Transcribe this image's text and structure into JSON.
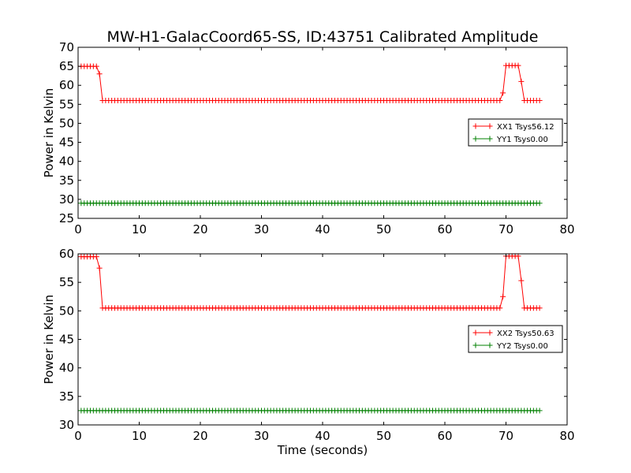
{
  "chart_data": [
    {
      "type": "line",
      "title": "MW-H1-GalacCoord65-SS, ID:43751 Calibrated Amplitude",
      "xlabel": "",
      "ylabel": "Power in Kelvin",
      "xlim": [
        0,
        80
      ],
      "ylim": [
        25,
        70
      ],
      "xticks": [
        "0",
        "10",
        "20",
        "30",
        "40",
        "50",
        "60",
        "70",
        "80"
      ],
      "yticks": [
        "25",
        "30",
        "35",
        "40",
        "45",
        "50",
        "55",
        "60",
        "65",
        "70"
      ],
      "grid": false,
      "legend_position": "center-right",
      "series": [
        {
          "name": "XX1 Tsys56.12",
          "color": "#ff0000",
          "marker": "plus",
          "segments": [
            {
              "x_start": 0.5,
              "x_end": 3.0,
              "y": 65.0
            },
            {
              "x": 3.5,
              "y": 63.0
            },
            {
              "x_start": 4.0,
              "x_end": 69.0,
              "y": 56.0
            },
            {
              "x": 69.5,
              "y": 58.0
            },
            {
              "x_start": 70.0,
              "x_end": 72.0,
              "y": 65.2
            },
            {
              "x": 72.5,
              "y": 61.0
            },
            {
              "x_start": 73.0,
              "x_end": 75.5,
              "y": 56.0
            }
          ]
        },
        {
          "name": "YY1 Tsys0.00",
          "color": "#008000",
          "marker": "plus",
          "segments": [
            {
              "x_start": 0.5,
              "x_end": 75.5,
              "y": 29.0
            }
          ]
        }
      ]
    },
    {
      "type": "line",
      "title": "",
      "xlabel": "Time (seconds)",
      "ylabel": "Power in Kelvin",
      "xlim": [
        0,
        80
      ],
      "ylim": [
        30,
        60
      ],
      "xticks": [
        "0",
        "10",
        "20",
        "30",
        "40",
        "50",
        "60",
        "70",
        "80"
      ],
      "yticks": [
        "30",
        "35",
        "40",
        "45",
        "50",
        "55",
        "60"
      ],
      "grid": false,
      "legend_position": "center-right",
      "series": [
        {
          "name": "XX2 Tsys50.63",
          "color": "#ff0000",
          "marker": "plus",
          "segments": [
            {
              "x_start": 0.5,
              "x_end": 3.0,
              "y": 59.5
            },
            {
              "x": 3.5,
              "y": 57.5
            },
            {
              "x_start": 4.0,
              "x_end": 69.0,
              "y": 50.5
            },
            {
              "x": 69.5,
              "y": 52.5
            },
            {
              "x_start": 70.0,
              "x_end": 72.0,
              "y": 59.6
            },
            {
              "x": 72.5,
              "y": 55.3
            },
            {
              "x_start": 73.0,
              "x_end": 75.5,
              "y": 50.5
            }
          ]
        },
        {
          "name": "YY2 Tsys0.00",
          "color": "#008000",
          "marker": "plus",
          "segments": [
            {
              "x_start": 0.5,
              "x_end": 75.5,
              "y": 32.5
            }
          ]
        }
      ]
    }
  ]
}
